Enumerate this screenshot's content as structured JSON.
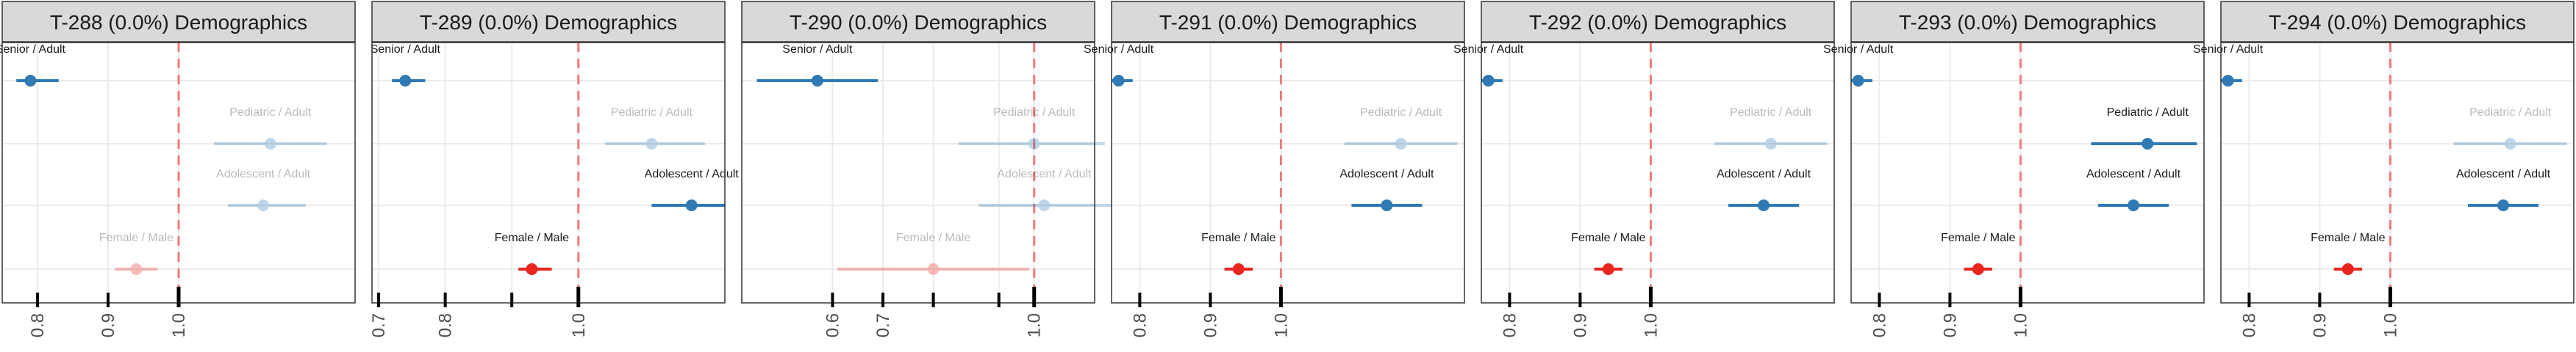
{
  "chart_data": [
    {
      "type": "scatter",
      "title": "T-288 (0.0%) Demographics",
      "xlim": [
        0.75,
        1.25
      ],
      "ticks": [
        0.8,
        0.9,
        1.0
      ],
      "tick_labels": [
        "0.8",
        "0.9",
        "1.0"
      ],
      "minor_ticks": [],
      "reference_line": 1.0,
      "points": [
        {
          "label": "Senior / Adult",
          "group": "age",
          "estimate": 0.79,
          "ci": [
            0.77,
            0.83
          ],
          "faded": false
        },
        {
          "label": "Pediatric / Adult",
          "group": "age",
          "estimate": 1.13,
          "ci": [
            1.05,
            1.21
          ],
          "faded": true
        },
        {
          "label": "Adolescent / Adult",
          "group": "age",
          "estimate": 1.12,
          "ci": [
            1.07,
            1.18
          ],
          "faded": true
        },
        {
          "label": "Female / Male",
          "group": "sex",
          "estimate": 0.94,
          "ci": [
            0.91,
            0.97
          ],
          "faded": true
        }
      ]
    },
    {
      "type": "scatter",
      "title": "T-289 (0.0%) Demographics",
      "xlim": [
        0.69,
        1.22
      ],
      "ticks": [
        0.7,
        0.8,
        1.0
      ],
      "tick_labels": [
        "0.7",
        "0.8",
        "1.0"
      ],
      "minor_ticks": [
        0.9
      ],
      "reference_line": 1.0,
      "points": [
        {
          "label": "Senior / Adult",
          "group": "age",
          "estimate": 0.74,
          "ci": [
            0.72,
            0.77
          ],
          "faded": false
        },
        {
          "label": "Pediatric / Adult",
          "group": "age",
          "estimate": 1.11,
          "ci": [
            1.04,
            1.19
          ],
          "faded": true
        },
        {
          "label": "Adolescent / Adult",
          "group": "age",
          "estimate": 1.17,
          "ci": [
            1.11,
            1.22
          ],
          "faded": false
        },
        {
          "label": "Female / Male",
          "group": "sex",
          "estimate": 0.93,
          "ci": [
            0.91,
            0.96
          ],
          "faded": false
        }
      ]
    },
    {
      "type": "scatter",
      "title": "T-290 (0.0%) Demographics",
      "xlim": [
        0.42,
        1.12
      ],
      "ticks": [
        0.6,
        0.7,
        1.0
      ],
      "tick_labels": [
        "0.6",
        "0.7",
        "1.0"
      ],
      "minor_ticks": [
        0.8,
        0.93
      ],
      "reference_line": 1.0,
      "points": [
        {
          "label": "Senior / Adult",
          "group": "age",
          "estimate": 0.57,
          "ci": [
            0.45,
            0.69
          ],
          "faded": false
        },
        {
          "label": "Pediatric / Adult",
          "group": "age",
          "estimate": 1.0,
          "ci": [
            0.85,
            1.14
          ],
          "faded": true
        },
        {
          "label": "Adolescent / Adult",
          "group": "age",
          "estimate": 1.02,
          "ci": [
            0.89,
            1.16
          ],
          "faded": true
        },
        {
          "label": "Female / Male",
          "group": "sex",
          "estimate": 0.8,
          "ci": [
            0.61,
            0.99
          ],
          "faded": true
        }
      ]
    },
    {
      "type": "scatter",
      "title": "T-291 (0.0%) Demographics",
      "xlim": [
        0.76,
        1.26
      ],
      "ticks": [
        0.8,
        0.9,
        1.0
      ],
      "tick_labels": [
        "0.8",
        "0.9",
        "1.0"
      ],
      "minor_ticks": [],
      "reference_line": 1.0,
      "points": [
        {
          "label": "Senior / Adult",
          "group": "age",
          "estimate": 0.77,
          "ci": [
            0.76,
            0.79
          ],
          "faded": false
        },
        {
          "label": "Pediatric / Adult",
          "group": "age",
          "estimate": 1.17,
          "ci": [
            1.09,
            1.25
          ],
          "faded": true
        },
        {
          "label": "Adolescent / Adult",
          "group": "age",
          "estimate": 1.15,
          "ci": [
            1.1,
            1.2
          ],
          "faded": false
        },
        {
          "label": "Female / Male",
          "group": "sex",
          "estimate": 0.94,
          "ci": [
            0.92,
            0.96
          ],
          "faded": false
        }
      ]
    },
    {
      "type": "scatter",
      "title": "T-292 (0.0%) Demographics",
      "xlim": [
        0.76,
        1.26
      ],
      "ticks": [
        0.8,
        0.9,
        1.0
      ],
      "tick_labels": [
        "0.8",
        "0.9",
        "1.0"
      ],
      "minor_ticks": [],
      "reference_line": 1.0,
      "points": [
        {
          "label": "Senior / Adult",
          "group": "age",
          "estimate": 0.77,
          "ci": [
            0.76,
            0.79
          ],
          "faded": false
        },
        {
          "label": "Pediatric / Adult",
          "group": "age",
          "estimate": 1.17,
          "ci": [
            1.09,
            1.25
          ],
          "faded": true
        },
        {
          "label": "Adolescent / Adult",
          "group": "age",
          "estimate": 1.16,
          "ci": [
            1.11,
            1.21
          ],
          "faded": false
        },
        {
          "label": "Female / Male",
          "group": "sex",
          "estimate": 0.94,
          "ci": [
            0.92,
            0.96
          ],
          "faded": false
        }
      ]
    },
    {
      "type": "scatter",
      "title": "T-293 (0.0%) Demographics",
      "xlim": [
        0.76,
        1.26
      ],
      "ticks": [
        0.8,
        0.9,
        1.0
      ],
      "tick_labels": [
        "0.8",
        "0.9",
        "1.0"
      ],
      "minor_ticks": [],
      "reference_line": 1.0,
      "points": [
        {
          "label": "Senior / Adult",
          "group": "age",
          "estimate": 0.77,
          "ci": [
            0.76,
            0.79
          ],
          "faded": false
        },
        {
          "label": "Pediatric / Adult",
          "group": "age",
          "estimate": 1.18,
          "ci": [
            1.1,
            1.25
          ],
          "faded": false
        },
        {
          "label": "Adolescent / Adult",
          "group": "age",
          "estimate": 1.16,
          "ci": [
            1.11,
            1.21
          ],
          "faded": false
        },
        {
          "label": "Female / Male",
          "group": "sex",
          "estimate": 0.94,
          "ci": [
            0.92,
            0.96
          ],
          "faded": false
        }
      ]
    },
    {
      "type": "scatter",
      "title": "T-294 (0.0%) Demographics",
      "xlim": [
        0.76,
        1.26
      ],
      "ticks": [
        0.8,
        0.9,
        1.0
      ],
      "tick_labels": [
        "0.8",
        "0.9",
        "1.0"
      ],
      "minor_ticks": [],
      "reference_line": 1.0,
      "points": [
        {
          "label": "Senior / Adult",
          "group": "age",
          "estimate": 0.77,
          "ci": [
            0.76,
            0.79
          ],
          "faded": false
        },
        {
          "label": "Pediatric / Adult",
          "group": "age",
          "estimate": 1.17,
          "ci": [
            1.09,
            1.25
          ],
          "faded": true
        },
        {
          "label": "Adolescent / Adult",
          "group": "age",
          "estimate": 1.16,
          "ci": [
            1.11,
            1.21
          ],
          "faded": false
        },
        {
          "label": "Female / Male",
          "group": "sex",
          "estimate": 0.94,
          "ci": [
            0.92,
            0.96
          ],
          "faded": false
        }
      ]
    }
  ],
  "colors": {
    "age": "#2f79b5",
    "sex": "#e8251f",
    "reference_line": "#f07a7a",
    "strip_fill": "#d9d9d9",
    "grid": "#ebebeb"
  }
}
